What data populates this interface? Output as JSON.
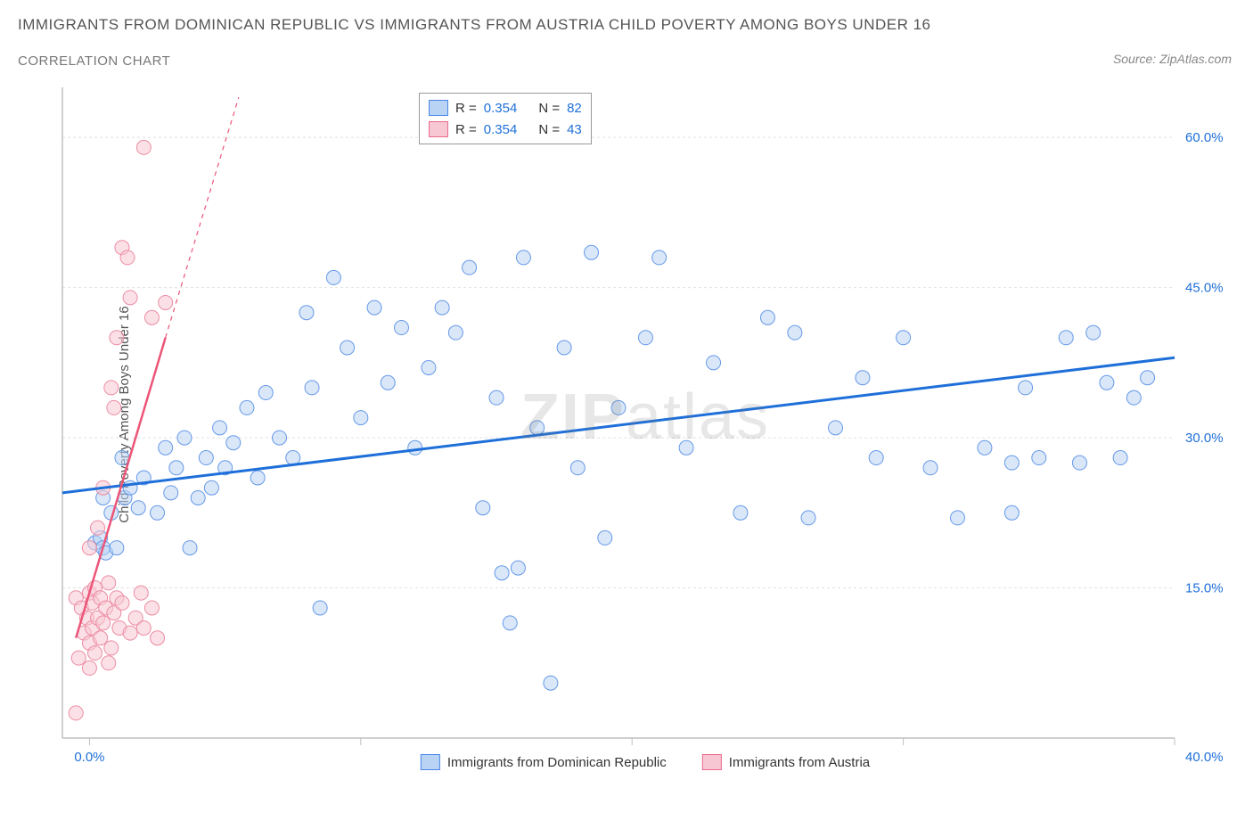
{
  "title": "IMMIGRANTS FROM DOMINICAN REPUBLIC VS IMMIGRANTS FROM AUSTRIA CHILD POVERTY AMONG BOYS UNDER 16",
  "subtitle": "CORRELATION CHART",
  "source": "Source: ZipAtlas.com",
  "y_axis_label": "Child Poverty Among Boys Under 16",
  "watermark_bold": "ZIP",
  "watermark_light": "atlas",
  "legend_top": {
    "rows": [
      {
        "color_fill": "#b9d3f4",
        "color_border": "#4a86e8",
        "r_label": "R =",
        "r_val": "0.354",
        "n_label": "N =",
        "n_val": "82"
      },
      {
        "color_fill": "#f7c8d4",
        "color_border": "#ec6a8b",
        "r_label": "R =",
        "r_val": "0.354",
        "n_label": "N =",
        "n_val": "43"
      }
    ]
  },
  "legend_bottom": {
    "items": [
      {
        "color_fill": "#b9d3f4",
        "color_border": "#4a86e8",
        "label": "Immigrants from Dominican Republic"
      },
      {
        "color_fill": "#f7c8d4",
        "color_border": "#ec6a8b",
        "label": "Immigrants from Austria"
      }
    ]
  },
  "chart": {
    "type": "scatter",
    "background_color": "#ffffff",
    "grid_color": "#e0e0e0",
    "axis_color": "#bfbfbf",
    "xlim": [
      -1,
      40
    ],
    "ylim": [
      0,
      65
    ],
    "xtick_step": 10,
    "yticks": [
      15,
      30,
      45,
      60
    ],
    "xtick_labels": [
      "0.0%",
      "40.0%"
    ],
    "ytick_labels": [
      "15.0%",
      "30.0%",
      "45.0%",
      "60.0%"
    ],
    "tick_label_color": "#1e6fd9",
    "tick_label_fontsize": 15,
    "marker_radius": 8,
    "marker_opacity": 0.55,
    "series": [
      {
        "name": "dominican",
        "fill": "#b9d3f4",
        "stroke": "#6699e8",
        "trend_color": "#1e6fd9",
        "trend_width": 3,
        "trend": {
          "x1": -1,
          "y1": 24.5,
          "x2": 40,
          "y2": 38.0
        },
        "points": [
          [
            0.2,
            19.5
          ],
          [
            0.4,
            20.0
          ],
          [
            0.5,
            19.0
          ],
          [
            0.5,
            24.0
          ],
          [
            0.6,
            18.5
          ],
          [
            0.8,
            22.5
          ],
          [
            1.0,
            19.0
          ],
          [
            1.2,
            28.0
          ],
          [
            1.3,
            24.0
          ],
          [
            1.5,
            25.0
          ],
          [
            1.8,
            23.0
          ],
          [
            2.0,
            26.0
          ],
          [
            2.5,
            22.5
          ],
          [
            2.8,
            29.0
          ],
          [
            3.0,
            24.5
          ],
          [
            3.2,
            27.0
          ],
          [
            3.5,
            30.0
          ],
          [
            3.7,
            19.0
          ],
          [
            4.0,
            24.0
          ],
          [
            4.3,
            28.0
          ],
          [
            4.5,
            25.0
          ],
          [
            4.8,
            31.0
          ],
          [
            5.0,
            27.0
          ],
          [
            5.3,
            29.5
          ],
          [
            5.8,
            33.0
          ],
          [
            6.2,
            26.0
          ],
          [
            6.5,
            34.5
          ],
          [
            7.0,
            30.0
          ],
          [
            7.5,
            28.0
          ],
          [
            8.0,
            42.5
          ],
          [
            8.2,
            35.0
          ],
          [
            8.5,
            13.0
          ],
          [
            9.0,
            46.0
          ],
          [
            9.5,
            39.0
          ],
          [
            10.0,
            32.0
          ],
          [
            10.5,
            43.0
          ],
          [
            11.0,
            35.5
          ],
          [
            11.5,
            41.0
          ],
          [
            12.0,
            29.0
          ],
          [
            12.5,
            37.0
          ],
          [
            13.0,
            43.0
          ],
          [
            13.5,
            40.5
          ],
          [
            14.0,
            47.0
          ],
          [
            14.5,
            23.0
          ],
          [
            15.0,
            34.0
          ],
          [
            15.2,
            16.5
          ],
          [
            15.5,
            11.5
          ],
          [
            15.8,
            17.0
          ],
          [
            16.0,
            48.0
          ],
          [
            16.5,
            31.0
          ],
          [
            17.0,
            5.5
          ],
          [
            17.5,
            39.0
          ],
          [
            18.0,
            27.0
          ],
          [
            18.5,
            48.5
          ],
          [
            19.0,
            20.0
          ],
          [
            19.5,
            33.0
          ],
          [
            20.5,
            40.0
          ],
          [
            21.0,
            48.0
          ],
          [
            22.0,
            29.0
          ],
          [
            23.0,
            37.5
          ],
          [
            24.0,
            22.5
          ],
          [
            25.0,
            42.0
          ],
          [
            26.0,
            40.5
          ],
          [
            26.5,
            22.0
          ],
          [
            27.5,
            31.0
          ],
          [
            28.5,
            36.0
          ],
          [
            29.0,
            28.0
          ],
          [
            30.0,
            40.0
          ],
          [
            31.0,
            27.0
          ],
          [
            32.0,
            22.0
          ],
          [
            33.0,
            29.0
          ],
          [
            34.0,
            27.5
          ],
          [
            34.5,
            35.0
          ],
          [
            35.0,
            28.0
          ],
          [
            36.0,
            40.0
          ],
          [
            36.5,
            27.5
          ],
          [
            37.0,
            40.5
          ],
          [
            37.5,
            35.5
          ],
          [
            38.0,
            28.0
          ],
          [
            38.5,
            34.0
          ],
          [
            39.0,
            36.0
          ],
          [
            34.0,
            22.5
          ]
        ]
      },
      {
        "name": "austria",
        "fill": "#f7c8d4",
        "stroke": "#ec8ca3",
        "trend_color": "#ec5578",
        "trend_width": 2.5,
        "trend": {
          "x1": -0.5,
          "y1": 10.0,
          "x2": 2.8,
          "y2": 40.0
        },
        "trend_dash": {
          "x1": 2.8,
          "y1": 40.0,
          "x2": 5.5,
          "y2": 64.0
        },
        "points": [
          [
            -0.5,
            2.5
          ],
          [
            -0.5,
            14.0
          ],
          [
            -0.4,
            8.0
          ],
          [
            -0.3,
            13.0
          ],
          [
            -0.2,
            10.5
          ],
          [
            -0.1,
            12.0
          ],
          [
            0.0,
            7.0
          ],
          [
            0.0,
            9.5
          ],
          [
            0.0,
            14.5
          ],
          [
            0.0,
            19.0
          ],
          [
            0.1,
            11.0
          ],
          [
            0.1,
            13.5
          ],
          [
            0.2,
            8.5
          ],
          [
            0.2,
            15.0
          ],
          [
            0.3,
            12.0
          ],
          [
            0.3,
            21.0
          ],
          [
            0.4,
            10.0
          ],
          [
            0.4,
            14.0
          ],
          [
            0.5,
            11.5
          ],
          [
            0.5,
            25.0
          ],
          [
            0.6,
            13.0
          ],
          [
            0.7,
            7.5
          ],
          [
            0.7,
            15.5
          ],
          [
            0.8,
            9.0
          ],
          [
            0.8,
            35.0
          ],
          [
            0.9,
            12.5
          ],
          [
            0.9,
            33.0
          ],
          [
            1.0,
            14.0
          ],
          [
            1.0,
            40.0
          ],
          [
            1.1,
            11.0
          ],
          [
            1.2,
            49.0
          ],
          [
            1.2,
            13.5
          ],
          [
            1.4,
            48.0
          ],
          [
            1.5,
            10.5
          ],
          [
            1.5,
            44.0
          ],
          [
            1.7,
            12.0
          ],
          [
            1.9,
            14.5
          ],
          [
            2.0,
            11.0
          ],
          [
            2.0,
            59.0
          ],
          [
            2.3,
            42.0
          ],
          [
            2.3,
            13.0
          ],
          [
            2.5,
            10.0
          ],
          [
            2.8,
            43.5
          ]
        ]
      }
    ]
  }
}
